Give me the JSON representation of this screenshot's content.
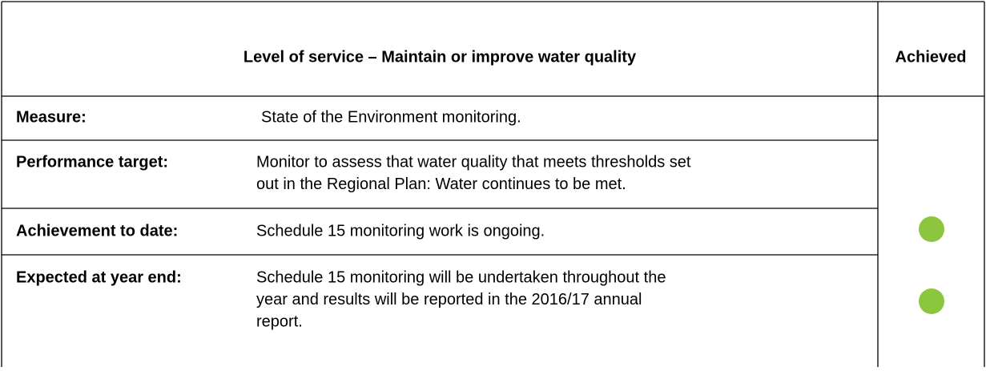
{
  "header": {
    "title": "Level of service – Maintain or improve water quality",
    "status": "Achieved"
  },
  "rows": [
    {
      "label": "Measure:",
      "lines": [
        "State of the Environment monitoring."
      ]
    },
    {
      "label": "Performance target:",
      "lines": [
        "Monitor to assess that water quality that meets thresholds set",
        "out in the Regional Plan: Water continues to be met."
      ]
    },
    {
      "label": "Achievement to date:",
      "lines": [
        "Schedule 15 monitoring work is ongoing."
      ]
    },
    {
      "label": "Expected at year end:",
      "lines": [
        "Schedule 15 monitoring will be undertaken throughout the",
        "year and results will be reported in the 2016/17 annual",
        "report."
      ]
    }
  ]
}
